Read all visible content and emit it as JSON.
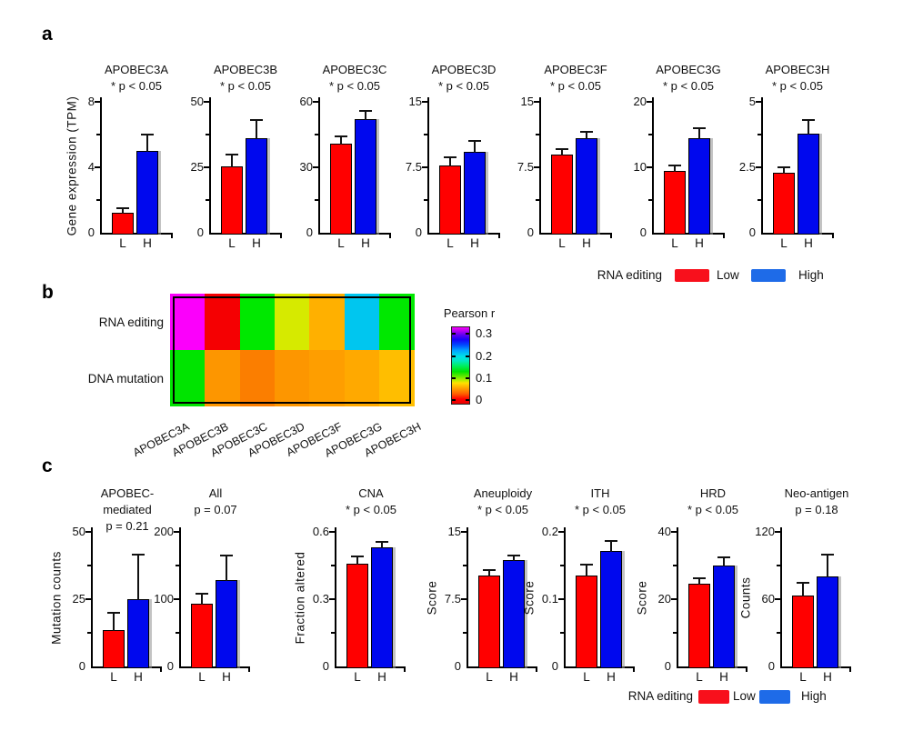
{
  "labels": {
    "panel_a": "a",
    "panel_b": "b",
    "panel_c": "c"
  },
  "legend_a": {
    "title": "RNA editing",
    "low": "Low",
    "high": "High"
  },
  "legend_c": {
    "title": "RNA editing",
    "low": "Low",
    "high": "High"
  },
  "colors": {
    "bar_low": "#FF0000",
    "bar_high": "#0008EE",
    "legend_low": "#F8101C",
    "legend_high": "#1E6BE8",
    "axis": "#000000"
  },
  "chart_data": [
    {
      "panel": "a",
      "type": "bar",
      "title_lines": [
        "APOBEC3A",
        "* p < 0.05"
      ],
      "ylabel": "Gene expression (TPM)",
      "categories": [
        "L",
        "H"
      ],
      "values": [
        1.2,
        5.0
      ],
      "errors": [
        0.3,
        1.0
      ],
      "ylim": [
        0,
        8
      ],
      "yticks": [
        "0",
        "4",
        "8"
      ]
    },
    {
      "panel": "a",
      "type": "bar",
      "title_lines": [
        "APOBEC3B",
        "* p < 0.05"
      ],
      "categories": [
        "L",
        "H"
      ],
      "values": [
        25.5,
        36
      ],
      "errors": [
        4.5,
        7
      ],
      "ylim": [
        0,
        50
      ],
      "yticks": [
        "0",
        "25",
        "50"
      ]
    },
    {
      "panel": "a",
      "type": "bar",
      "title_lines": [
        "APOBEC3C",
        "* p < 0.05"
      ],
      "categories": [
        "L",
        "H"
      ],
      "values": [
        41,
        52
      ],
      "errors": [
        3,
        4
      ],
      "ylim": [
        0,
        60
      ],
      "yticks": [
        "0",
        "30",
        "60"
      ]
    },
    {
      "panel": "a",
      "type": "bar",
      "title_lines": [
        "APOBEC3D",
        "* p < 0.05"
      ],
      "categories": [
        "L",
        "H"
      ],
      "values": [
        7.7,
        9.3
      ],
      "errors": [
        0.9,
        1.2
      ],
      "ylim": [
        0,
        15
      ],
      "yticks": [
        "0",
        "7.5",
        "15"
      ]
    },
    {
      "panel": "a",
      "type": "bar",
      "title_lines": [
        "APOBEC3F",
        "* p < 0.05"
      ],
      "categories": [
        "L",
        "H"
      ],
      "values": [
        9.0,
        10.8
      ],
      "errors": [
        0.6,
        0.8
      ],
      "ylim": [
        0,
        15
      ],
      "yticks": [
        "0",
        "7.5",
        "15"
      ]
    },
    {
      "panel": "a",
      "type": "bar",
      "title_lines": [
        "APOBEC3G",
        "* p < 0.05"
      ],
      "categories": [
        "L",
        "H"
      ],
      "values": [
        9.5,
        14.5
      ],
      "errors": [
        0.8,
        1.5
      ],
      "ylim": [
        0,
        20
      ],
      "yticks": [
        "0",
        "10",
        "20"
      ]
    },
    {
      "panel": "a",
      "type": "bar",
      "title_lines": [
        "APOBEC3H",
        "* p < 0.05"
      ],
      "categories": [
        "L",
        "H"
      ],
      "values": [
        2.3,
        3.8
      ],
      "errors": [
        0.2,
        0.5
      ],
      "ylim": [
        0,
        5
      ],
      "yticks": [
        "0",
        "2.5",
        "5"
      ]
    },
    {
      "panel": "b",
      "type": "heatmap",
      "rows": [
        "RNA editing",
        "DNA mutation"
      ],
      "columns": [
        "APOBEC3A",
        "APOBEC3B",
        "APOBEC3C",
        "APOBEC3D",
        "APOBEC3F",
        "APOBEC3G",
        "APOBEC3H"
      ],
      "values_pearson_r": [
        [
          0.33,
          0.01,
          0.12,
          0.08,
          0.04,
          0.2,
          0.12
        ],
        [
          0.12,
          0.04,
          0.03,
          0.04,
          0.04,
          0.05,
          0.05
        ]
      ],
      "cell_colors": [
        [
          "#FB00FB",
          "#F50002",
          "#00E800",
          "#D6EA00",
          "#FFB000",
          "#00C6EF",
          "#00E800"
        ],
        [
          "#00E400",
          "#FD9600",
          "#FB7E00",
          "#FD9600",
          "#FE9E00",
          "#FFA900",
          "#FFBE00"
        ]
      ],
      "colorbar": {
        "title": "Pearson r",
        "tick_labels": [
          "0.3",
          "0.2",
          "0.1",
          "0"
        ],
        "range": [
          0,
          0.33
        ]
      }
    },
    {
      "panel": "c",
      "type": "bar",
      "title_lines": [
        "APOBEC-",
        "mediated",
        "p = 0.21"
      ],
      "ylabel": "Mutation counts",
      "categories": [
        "L",
        "H"
      ],
      "values": [
        13.5,
        25
      ],
      "errors": [
        6.5,
        16.5
      ],
      "ylim": [
        0,
        50
      ],
      "yticks": [
        "0",
        "25",
        "50"
      ]
    },
    {
      "panel": "c",
      "type": "bar",
      "title_lines": [
        "All",
        "p = 0.07"
      ],
      "categories": [
        "L",
        "H"
      ],
      "values": [
        93,
        128
      ],
      "errors": [
        15,
        37
      ],
      "ylim": [
        0,
        200
      ],
      "yticks": [
        "0",
        "100",
        "200"
      ]
    },
    {
      "panel": "c",
      "type": "bar",
      "title_lines": [
        "CNA",
        "* p < 0.05"
      ],
      "ylabel": "Fraction altered",
      "categories": [
        "L",
        "H"
      ],
      "values": [
        0.46,
        0.53
      ],
      "errors": [
        0.03,
        0.025
      ],
      "ylim": [
        0,
        0.6
      ],
      "yticks": [
        "0",
        "0.3",
        "0.6"
      ]
    },
    {
      "panel": "c",
      "type": "bar",
      "title_lines": [
        "Aneuploidy",
        "* p < 0.05"
      ],
      "ylabel": "Score",
      "categories": [
        "L",
        "H"
      ],
      "values": [
        10.1,
        11.9
      ],
      "errors": [
        0.6,
        0.5
      ],
      "ylim": [
        0,
        15
      ],
      "yticks": [
        "0",
        "7.5",
        "15"
      ]
    },
    {
      "panel": "c",
      "type": "bar",
      "title_lines": [
        "ITH",
        "* p < 0.05"
      ],
      "ylabel": "Score",
      "categories": [
        "L",
        "H"
      ],
      "values": [
        0.135,
        0.172
      ],
      "errors": [
        0.017,
        0.015
      ],
      "ylim": [
        0,
        0.2
      ],
      "yticks": [
        "0",
        "0.1",
        "0.2"
      ]
    },
    {
      "panel": "c",
      "type": "bar",
      "title_lines": [
        "HRD",
        "* p < 0.05"
      ],
      "ylabel": "Score",
      "categories": [
        "L",
        "H"
      ],
      "values": [
        24.5,
        30
      ],
      "errors": [
        1.8,
        2.3
      ],
      "ylim": [
        0,
        40
      ],
      "yticks": [
        "0",
        "20",
        "40"
      ]
    },
    {
      "panel": "c",
      "type": "bar",
      "title_lines": [
        "Neo-antigen",
        "p = 0.18"
      ],
      "ylabel": "Counts",
      "categories": [
        "L",
        "H"
      ],
      "values": [
        63,
        80
      ],
      "errors": [
        12,
        20
      ],
      "ylim": [
        0,
        120
      ],
      "yticks": [
        "0",
        "60",
        "120"
      ]
    }
  ]
}
